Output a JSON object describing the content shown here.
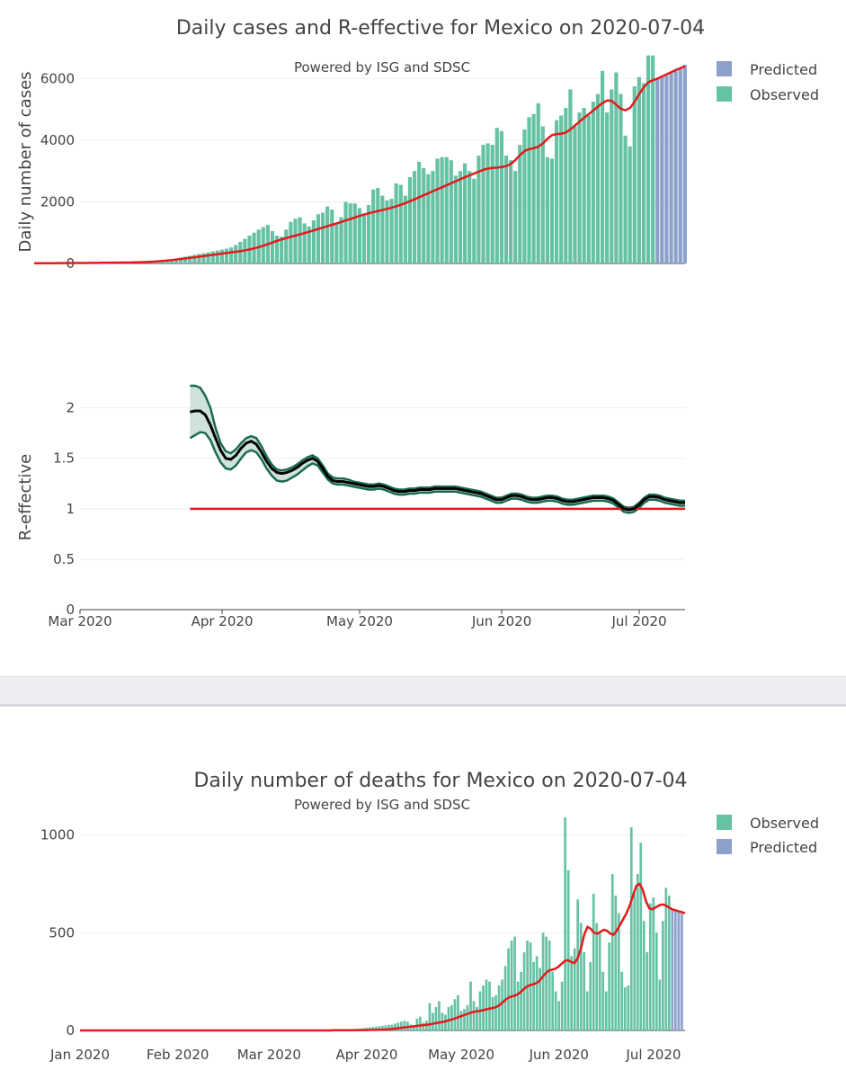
{
  "colors": {
    "observed": "#66c2a5",
    "predicted": "#8da0cb",
    "trend": "#e41a1c",
    "r_line": "#000000",
    "r_band_fill": "#cfe3dc",
    "r_band_edge": "#1b6b50",
    "threshold": "#e41a1c"
  },
  "chart_data": [
    {
      "type": "bar",
      "id": "cases",
      "title": "Daily cases and R-effective for Mexico on 2020-07-04",
      "subtitle": "Powered by ISG and SDSC",
      "ylabel": "Daily number of cases",
      "ylim": [
        0,
        6800
      ],
      "yticks": [
        0,
        2000,
        4000,
        6000
      ],
      "x_start": "2020-03-01",
      "x_end": "2020-07-11",
      "observed_until": "2020-07-04",
      "legend": [
        "Predicted",
        "Observed"
      ],
      "observed_values": [
        5,
        5,
        6,
        6,
        7,
        7,
        8,
        9,
        9,
        10,
        10,
        11,
        12,
        13,
        14,
        15,
        16,
        17,
        18,
        20,
        22,
        25,
        28,
        35,
        45,
        55,
        75,
        95,
        110,
        130,
        160,
        190,
        220,
        250,
        280,
        310,
        330,
        360,
        390,
        420,
        450,
        480,
        520,
        600,
        700,
        800,
        900,
        1000,
        1100,
        1180,
        1250,
        1050,
        900,
        870,
        1100,
        1350,
        1450,
        1500,
        1300,
        1200,
        1400,
        1600,
        1650,
        1850,
        1750,
        1300,
        1500,
        2000,
        1950,
        1950,
        1800,
        1600,
        1900,
        2400,
        2450,
        2200,
        2050,
        2100,
        2600,
        2550,
        2200,
        2800,
        3000,
        3300,
        3100,
        2900,
        3000,
        3400,
        3450,
        3450,
        3350,
        2850,
        3000,
        3250,
        3000,
        2750,
        3500,
        3850,
        3900,
        3850,
        4400,
        4300,
        3500,
        3350,
        3000,
        3850,
        4350,
        4750,
        4850,
        5200,
        4450,
        3450,
        3400,
        4650,
        4800,
        5050,
        5650,
        4450,
        4900,
        5050,
        4800,
        5250,
        5500,
        6250,
        4900,
        5650,
        6200,
        5500,
        4150,
        3800,
        5750,
        6050,
        5850,
        6750,
        6750
      ],
      "predicted_values": [
        6000,
        6050,
        6100,
        6200,
        6250,
        6350,
        6450
      ],
      "trend_values": [
        5,
        6,
        7,
        8,
        9,
        10,
        11,
        12,
        13,
        14,
        15,
        16,
        17,
        18,
        19,
        20,
        22,
        24,
        26,
        28,
        30,
        33,
        36,
        40,
        45,
        52,
        60,
        70,
        82,
        95,
        110,
        128,
        145,
        163,
        182,
        200,
        220,
        240,
        260,
        280,
        300,
        320,
        340,
        360,
        380,
        400,
        425,
        455,
        490,
        530,
        575,
        625,
        680,
        735,
        780,
        825,
        865,
        905,
        945,
        985,
        1030,
        1075,
        1120,
        1165,
        1210,
        1255,
        1300,
        1345,
        1395,
        1445,
        1495,
        1545,
        1590,
        1630,
        1665,
        1700,
        1735,
        1770,
        1810,
        1855,
        1905,
        1960,
        2020,
        2085,
        2150,
        2215,
        2280,
        2345,
        2410,
        2475,
        2540,
        2605,
        2670,
        2735,
        2800,
        2860,
        2920,
        2980,
        3040,
        3080,
        3100,
        3110,
        3130,
        3160,
        3230,
        3360,
        3520,
        3650,
        3710,
        3740,
        3790,
        3900,
        4050,
        4170,
        4200,
        4210,
        4250,
        4350,
        4480,
        4610,
        4730,
        4850,
        4970,
        5090,
        5210,
        5290,
        5280,
        5150,
        5020,
        4970,
        5050,
        5250,
        5500,
        5720,
        5880,
        5950,
        6000,
        6070,
        6140,
        6210,
        6280,
        6340,
        6400
      ]
    },
    {
      "type": "line",
      "id": "reff",
      "ylabel": "R-effective",
      "ylim": [
        0,
        2.3
      ],
      "yticks": [
        "0",
        "0.5",
        "1",
        "1.5",
        "2"
      ],
      "ytick_values": [
        0,
        0.5,
        1,
        1.5,
        2
      ],
      "xticks": [
        "Mar 2020",
        "Apr 2020",
        "May 2020",
        "Jun 2020",
        "Jul 2020"
      ],
      "xtick_dates": [
        "2020-03-01",
        "2020-04-01",
        "2020-05-01",
        "2020-06-01",
        "2020-07-01"
      ],
      "x_start": "2020-03-01",
      "x_end": "2020-07-11",
      "series_start": "2020-03-25",
      "threshold": 1,
      "r_mean": [
        1.96,
        1.97,
        1.97,
        1.93,
        1.83,
        1.7,
        1.58,
        1.5,
        1.49,
        1.53,
        1.6,
        1.65,
        1.67,
        1.64,
        1.56,
        1.47,
        1.4,
        1.36,
        1.35,
        1.36,
        1.38,
        1.41,
        1.45,
        1.48,
        1.5,
        1.47,
        1.4,
        1.32,
        1.28,
        1.27,
        1.27,
        1.26,
        1.25,
        1.24,
        1.23,
        1.22,
        1.22,
        1.23,
        1.22,
        1.2,
        1.18,
        1.17,
        1.17,
        1.18,
        1.18,
        1.19,
        1.19,
        1.19,
        1.2,
        1.2,
        1.2,
        1.2,
        1.2,
        1.19,
        1.18,
        1.17,
        1.16,
        1.15,
        1.13,
        1.11,
        1.09,
        1.09,
        1.11,
        1.13,
        1.13,
        1.12,
        1.1,
        1.09,
        1.09,
        1.1,
        1.11,
        1.11,
        1.1,
        1.08,
        1.07,
        1.07,
        1.08,
        1.09,
        1.1,
        1.11,
        1.11,
        1.11,
        1.1,
        1.08,
        1.04,
        1.0,
        0.99,
        1.0,
        1.04,
        1.09,
        1.12,
        1.12,
        1.11,
        1.09,
        1.08,
        1.07,
        1.06,
        1.06
      ],
      "r_upper": [
        2.22,
        2.22,
        2.2,
        2.12,
        2.0,
        1.8,
        1.65,
        1.57,
        1.55,
        1.59,
        1.65,
        1.7,
        1.72,
        1.7,
        1.62,
        1.52,
        1.44,
        1.39,
        1.38,
        1.39,
        1.41,
        1.44,
        1.48,
        1.51,
        1.53,
        1.5,
        1.43,
        1.35,
        1.31,
        1.3,
        1.3,
        1.29,
        1.27,
        1.26,
        1.25,
        1.24,
        1.24,
        1.25,
        1.24,
        1.22,
        1.2,
        1.19,
        1.19,
        1.2,
        1.2,
        1.21,
        1.21,
        1.21,
        1.22,
        1.22,
        1.22,
        1.22,
        1.22,
        1.21,
        1.2,
        1.19,
        1.18,
        1.17,
        1.15,
        1.13,
        1.11,
        1.11,
        1.13,
        1.15,
        1.15,
        1.14,
        1.12,
        1.11,
        1.11,
        1.12,
        1.13,
        1.13,
        1.12,
        1.1,
        1.09,
        1.09,
        1.1,
        1.11,
        1.12,
        1.13,
        1.13,
        1.13,
        1.12,
        1.1,
        1.06,
        1.02,
        1.01,
        1.02,
        1.06,
        1.11,
        1.14,
        1.14,
        1.13,
        1.11,
        1.1,
        1.09,
        1.08,
        1.08
      ],
      "r_lower": [
        1.7,
        1.73,
        1.76,
        1.75,
        1.68,
        1.56,
        1.46,
        1.4,
        1.39,
        1.43,
        1.5,
        1.56,
        1.58,
        1.56,
        1.49,
        1.4,
        1.33,
        1.28,
        1.27,
        1.28,
        1.31,
        1.34,
        1.38,
        1.42,
        1.45,
        1.43,
        1.36,
        1.29,
        1.25,
        1.24,
        1.24,
        1.23,
        1.22,
        1.21,
        1.2,
        1.19,
        1.19,
        1.2,
        1.19,
        1.17,
        1.15,
        1.14,
        1.14,
        1.15,
        1.15,
        1.16,
        1.16,
        1.16,
        1.17,
        1.17,
        1.17,
        1.17,
        1.17,
        1.16,
        1.15,
        1.14,
        1.13,
        1.12,
        1.1,
        1.08,
        1.06,
        1.06,
        1.08,
        1.1,
        1.1,
        1.09,
        1.07,
        1.06,
        1.06,
        1.07,
        1.08,
        1.08,
        1.07,
        1.05,
        1.04,
        1.04,
        1.05,
        1.06,
        1.07,
        1.08,
        1.08,
        1.08,
        1.07,
        1.05,
        1.01,
        0.97,
        0.96,
        0.97,
        1.01,
        1.06,
        1.09,
        1.09,
        1.08,
        1.06,
        1.05,
        1.04,
        1.03,
        1.03
      ]
    },
    {
      "type": "bar",
      "id": "deaths",
      "title": "Daily number of deaths for Mexico on 2020-07-04",
      "subtitle": "Powered by ISG and SDSC",
      "ylim": [
        0,
        1150
      ],
      "yticks": [
        "0",
        "500",
        "1000"
      ],
      "ytick_values": [
        0,
        500,
        1000
      ],
      "xticks": [
        "Jan 2020",
        "Feb 2020",
        "Mar 2020",
        "Apr 2020",
        "May 2020",
        "Jun 2020",
        "Jul 2020"
      ],
      "xtick_dates": [
        "2020-01-01",
        "2020-02-01",
        "2020-03-01",
        "2020-04-01",
        "2020-05-01",
        "2020-06-01",
        "2020-07-01"
      ],
      "x_start": "2020-01-01",
      "x_end": "2020-07-11",
      "legend": [
        "Observed",
        "Predicted"
      ],
      "observed_start": "2020-03-19",
      "observed_values": [
        1,
        1,
        2,
        2,
        3,
        3,
        4,
        5,
        6,
        7,
        8,
        10,
        12,
        14,
        16,
        18,
        20,
        22,
        24,
        26,
        28,
        30,
        35,
        40,
        45,
        50,
        45,
        30,
        20,
        60,
        70,
        40,
        50,
        140,
        90,
        120,
        150,
        90,
        80,
        120,
        130,
        160,
        180,
        100,
        110,
        130,
        250,
        150,
        120,
        200,
        230,
        260,
        250,
        170,
        180,
        230,
        260,
        330,
        420,
        460,
        480,
        250,
        300,
        400,
        460,
        450,
        350,
        380,
        320,
        500,
        480,
        460,
        300,
        200,
        150,
        250,
        1090,
        820,
        380,
        420,
        670,
        550,
        400,
        200,
        350,
        700,
        550,
        500,
        300,
        200,
        450,
        800,
        690,
        600,
        300,
        220,
        230,
        1040,
        700,
        800,
        960,
        560,
        400,
        650,
        680,
        500,
        260,
        560,
        730,
        690
      ],
      "predicted_values": [
        620,
        610,
        605,
        600
      ],
      "trend_start": "2020-01-01",
      "trend_values": [
        0,
        0,
        0,
        0,
        0,
        0,
        0,
        0,
        0,
        0,
        0,
        0,
        0,
        0,
        0,
        0,
        0,
        0,
        0,
        0,
        0,
        0,
        0,
        0,
        0,
        0,
        0,
        0,
        0,
        0,
        0,
        0,
        0,
        0,
        0,
        0,
        0,
        0,
        0,
        0,
        0,
        0,
        0,
        0,
        0,
        0,
        0,
        0,
        0,
        0,
        0,
        0,
        0,
        0,
        0,
        0,
        0,
        0,
        0,
        0,
        0,
        0,
        0,
        0,
        0,
        0,
        0,
        0,
        0,
        0,
        0,
        0,
        0,
        0,
        0,
        0,
        0,
        0,
        1,
        1,
        1,
        1,
        1,
        1,
        1,
        2,
        2,
        2,
        2,
        3,
        3,
        3,
        4,
        4,
        5,
        6,
        8,
        10,
        12,
        14,
        16,
        18,
        20,
        22,
        24,
        26,
        28,
        30,
        33,
        36,
        39,
        42,
        45,
        50,
        55,
        60,
        66,
        72,
        78,
        84,
        90,
        95,
        98,
        100,
        104,
        108,
        112,
        115,
        120,
        130,
        145,
        160,
        170,
        175,
        180,
        190,
        205,
        220,
        230,
        235,
        240,
        250,
        270,
        290,
        305,
        310,
        315,
        325,
        340,
        355,
        360,
        350,
        345,
        370,
        420,
        490,
        530,
        520,
        500,
        495,
        505,
        515,
        510,
        495,
        490,
        510,
        540,
        570,
        600,
        640,
        690,
        740,
        750,
        720,
        660,
        625,
        620,
        630,
        640,
        645,
        640,
        630,
        620,
        615,
        610,
        605,
        600
      ]
    }
  ],
  "legend_labels": {
    "cases_predicted": "Predicted",
    "cases_observed": "Observed",
    "deaths_observed": "Observed",
    "deaths_predicted": "Predicted"
  }
}
